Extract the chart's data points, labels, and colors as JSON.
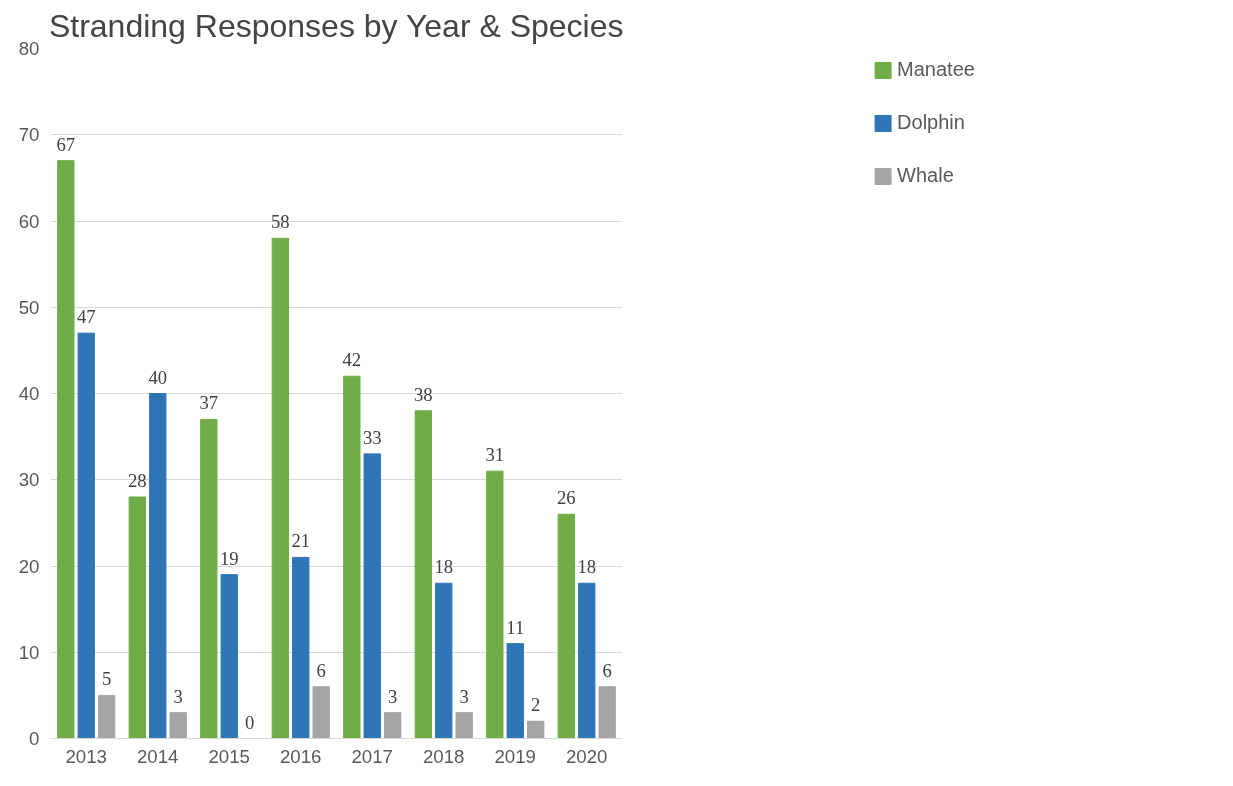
{
  "chart_data": {
    "type": "bar",
    "title": "Stranding Responses by Year & Species",
    "categories": [
      "2013",
      "2014",
      "2015",
      "2016",
      "2017",
      "2018",
      "2019",
      "2020"
    ],
    "series": [
      {
        "name": "Manatee",
        "color": "#70ad47",
        "values": [
          67,
          28,
          37,
          58,
          42,
          38,
          31,
          26
        ]
      },
      {
        "name": "Dolphin",
        "color": "#2e75b6",
        "values": [
          47,
          40,
          19,
          21,
          33,
          18,
          11,
          18
        ]
      },
      {
        "name": "Whale",
        "color": "#a5a5a5",
        "values": [
          5,
          3,
          0,
          6,
          3,
          3,
          2,
          6
        ]
      }
    ],
    "ylim": [
      0,
      80
    ],
    "yticks": [
      0,
      10,
      20,
      30,
      40,
      50,
      60,
      70,
      80
    ],
    "grid": "y",
    "legend": "right",
    "data_labels": true
  }
}
